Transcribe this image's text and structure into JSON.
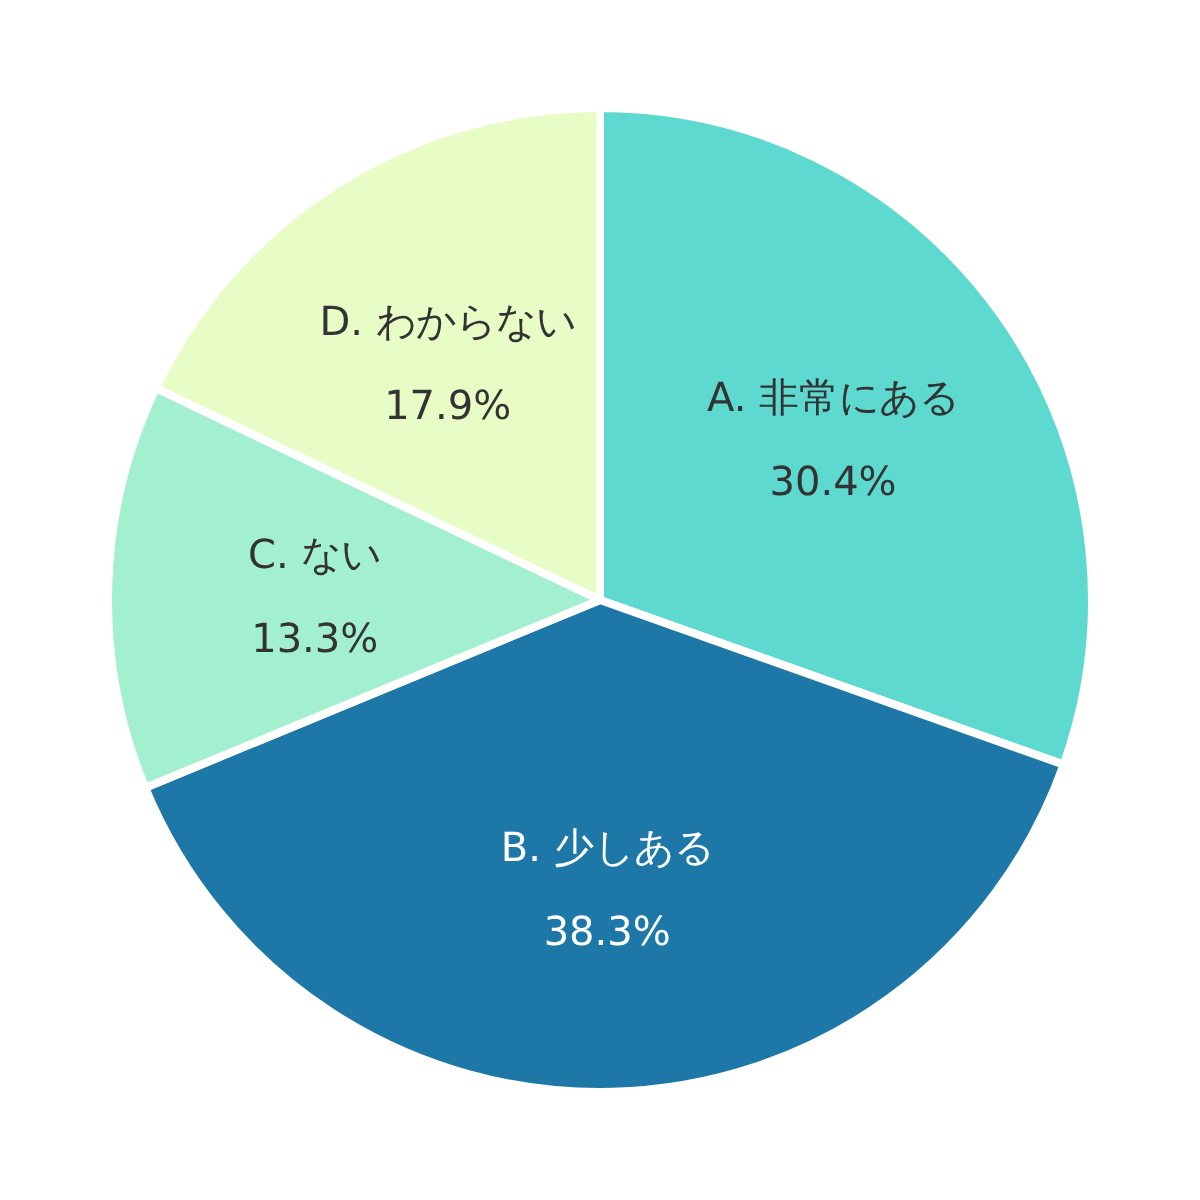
{
  "chart_data": {
    "type": "pie",
    "categories": [
      "A. 非常にある",
      "B. 少しある",
      "C. ない",
      "D. わからない"
    ],
    "values": [
      30.4,
      38.3,
      13.3,
      17.9
    ],
    "colors": [
      "#5dd9cf",
      "#1d78a8",
      "#a3f0d1",
      "#e8fcc6"
    ],
    "value_labels": [
      "30.4%",
      "38.3%",
      "13.3%",
      "17.9%"
    ]
  }
}
